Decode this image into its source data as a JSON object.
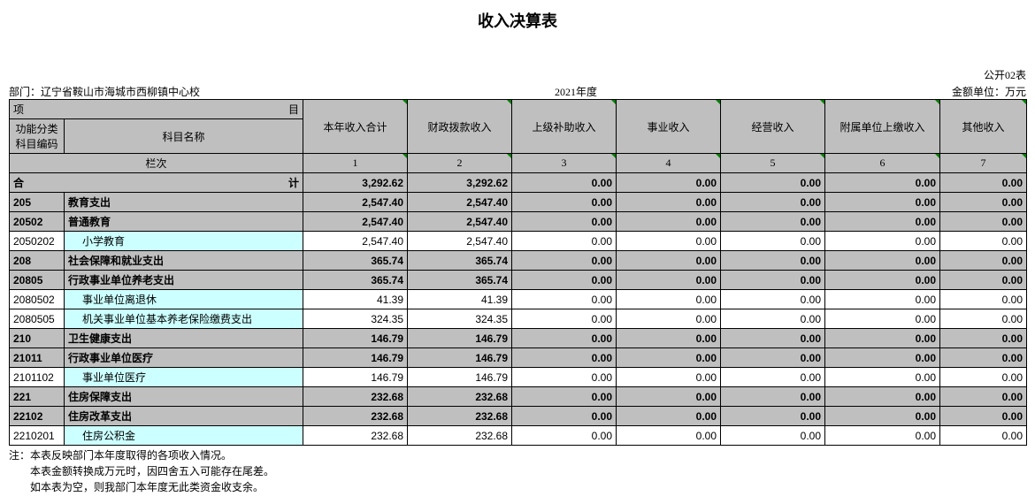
{
  "title": "收入决算表",
  "meta": {
    "topRight": "公开02表",
    "dept": "部门：辽宁省鞍山市海城市西柳镇中心校",
    "year": "2021年度",
    "unit": "金额单位：万元"
  },
  "headers": {
    "xiang": "项",
    "mu": "目",
    "codeHdr": "功能分类科目编码",
    "nameHdr": "科目名称",
    "lanci": "栏次",
    "cols": [
      "本年收入合计",
      "财政拨款收入",
      "上级补助收入",
      "事业收入",
      "经营收入",
      "附属单位上缴收入",
      "其他收入"
    ],
    "nums": [
      "1",
      "2",
      "3",
      "4",
      "5",
      "6",
      "7"
    ]
  },
  "total": {
    "label": "合",
    "labelR": "计",
    "vals": [
      "3,292.62",
      "3,292.62",
      "0.00",
      "0.00",
      "0.00",
      "0.00",
      "0.00"
    ]
  },
  "rows": [
    {
      "type": "gray",
      "code": "205",
      "name": "教育支出",
      "vals": [
        "2,547.40",
        "2,547.40",
        "0.00",
        "0.00",
        "0.00",
        "0.00",
        "0.00"
      ]
    },
    {
      "type": "gray",
      "code": "20502",
      "name": "普通教育",
      "vals": [
        "2,547.40",
        "2,547.40",
        "0.00",
        "0.00",
        "0.00",
        "0.00",
        "0.00"
      ]
    },
    {
      "type": "cyan",
      "code": "2050202",
      "name": "小学教育",
      "indent": true,
      "vals": [
        "2,547.40",
        "2,547.40",
        "0.00",
        "0.00",
        "0.00",
        "0.00",
        "0.00"
      ]
    },
    {
      "type": "gray",
      "code": "208",
      "name": "社会保障和就业支出",
      "vals": [
        "365.74",
        "365.74",
        "0.00",
        "0.00",
        "0.00",
        "0.00",
        "0.00"
      ]
    },
    {
      "type": "gray",
      "code": "20805",
      "name": "行政事业单位养老支出",
      "vals": [
        "365.74",
        "365.74",
        "0.00",
        "0.00",
        "0.00",
        "0.00",
        "0.00"
      ]
    },
    {
      "type": "cyan",
      "code": "2080502",
      "name": "事业单位离退休",
      "indent": true,
      "vals": [
        "41.39",
        "41.39",
        "0.00",
        "0.00",
        "0.00",
        "0.00",
        "0.00"
      ]
    },
    {
      "type": "cyan",
      "code": "2080505",
      "name": "机关事业单位基本养老保险缴费支出",
      "indent": true,
      "vals": [
        "324.35",
        "324.35",
        "0.00",
        "0.00",
        "0.00",
        "0.00",
        "0.00"
      ]
    },
    {
      "type": "gray",
      "code": "210",
      "name": "卫生健康支出",
      "vals": [
        "146.79",
        "146.79",
        "0.00",
        "0.00",
        "0.00",
        "0.00",
        "0.00"
      ]
    },
    {
      "type": "gray",
      "code": "21011",
      "name": "行政事业单位医疗",
      "vals": [
        "146.79",
        "146.79",
        "0.00",
        "0.00",
        "0.00",
        "0.00",
        "0.00"
      ]
    },
    {
      "type": "cyan",
      "code": "2101102",
      "name": "事业单位医疗",
      "indent": true,
      "vals": [
        "146.79",
        "146.79",
        "0.00",
        "0.00",
        "0.00",
        "0.00",
        "0.00"
      ]
    },
    {
      "type": "gray",
      "code": "221",
      "name": "住房保障支出",
      "vals": [
        "232.68",
        "232.68",
        "0.00",
        "0.00",
        "0.00",
        "0.00",
        "0.00"
      ]
    },
    {
      "type": "gray",
      "code": "22102",
      "name": "住房改革支出",
      "vals": [
        "232.68",
        "232.68",
        "0.00",
        "0.00",
        "0.00",
        "0.00",
        "0.00"
      ]
    },
    {
      "type": "cyan",
      "code": "2210201",
      "name": "住房公积金",
      "indent": true,
      "vals": [
        "232.68",
        "232.68",
        "0.00",
        "0.00",
        "0.00",
        "0.00",
        "0.00"
      ]
    }
  ],
  "notes": [
    "注：本表反映部门本年度取得的各项收入情况。",
    "　　本表金额转换成万元时，因四舍五入可能存在尾差。",
    "　　如本表为空，则我部门本年度无此类资金收支余。"
  ],
  "style": {
    "colWidths": [
      "62px",
      "270px",
      "118px",
      "118px",
      "118px",
      "118px",
      "118px",
      "130px",
      "98px"
    ]
  }
}
